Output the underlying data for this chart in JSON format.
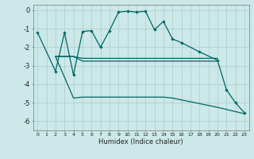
{
  "line1_x": [
    0,
    2,
    3,
    4,
    5,
    6,
    7,
    8,
    9,
    10,
    11,
    12,
    13,
    14,
    15,
    16,
    18,
    20,
    21,
    22,
    23
  ],
  "line1_y": [
    -1.2,
    -3.3,
    -1.2,
    -3.5,
    -1.15,
    -1.1,
    -2.0,
    -1.1,
    -0.1,
    -0.05,
    -0.1,
    -0.05,
    -1.05,
    -0.6,
    -1.55,
    -1.75,
    -2.25,
    -2.7,
    -4.3,
    -5.0,
    -5.55
  ],
  "line2_x": [
    2,
    4,
    5,
    6,
    7,
    8,
    9,
    10,
    11,
    12,
    13,
    14,
    15,
    16,
    17,
    18,
    19,
    20,
    23
  ],
  "line2_y": [
    -2.5,
    -4.75,
    -4.7,
    -4.7,
    -4.7,
    -4.7,
    -4.7,
    -4.7,
    -4.7,
    -4.7,
    -4.7,
    -4.7,
    -4.75,
    -4.85,
    -4.95,
    -5.05,
    -5.15,
    -5.25,
    -5.6
  ],
  "line3_x": [
    2,
    3,
    4,
    5,
    6,
    7,
    8,
    9,
    10,
    11,
    12,
    13,
    14,
    15,
    16,
    17,
    18,
    19,
    20
  ],
  "line3_y": [
    -2.5,
    -2.5,
    -2.5,
    -2.6,
    -2.6,
    -2.6,
    -2.6,
    -2.6,
    -2.6,
    -2.6,
    -2.6,
    -2.6,
    -2.6,
    -2.6,
    -2.6,
    -2.6,
    -2.6,
    -2.6,
    -2.6
  ],
  "line4_x": [
    2,
    3,
    4,
    5,
    6,
    7,
    8,
    9,
    10,
    11,
    12,
    13,
    14,
    15,
    16,
    17,
    18,
    19,
    20
  ],
  "line4_y": [
    -2.5,
    -2.5,
    -2.5,
    -2.75,
    -2.75,
    -2.75,
    -2.75,
    -2.75,
    -2.75,
    -2.75,
    -2.75,
    -2.75,
    -2.75,
    -2.75,
    -2.75,
    -2.75,
    -2.75,
    -2.75,
    -2.75
  ],
  "bg_color": "#cce8e8",
  "line_color": "#006666",
  "grid_color": "#aacccc",
  "xlabel": "Humidex (Indice chaleur)",
  "ylim": [
    -6.5,
    0.3
  ],
  "xlim": [
    -0.5,
    23.5
  ],
  "yticks": [
    0,
    -1,
    -2,
    -3,
    -4,
    -5,
    -6
  ],
  "ytick_labels": [
    "0",
    "-1",
    "-2",
    "-3",
    "-4",
    "-5",
    "-6"
  ]
}
